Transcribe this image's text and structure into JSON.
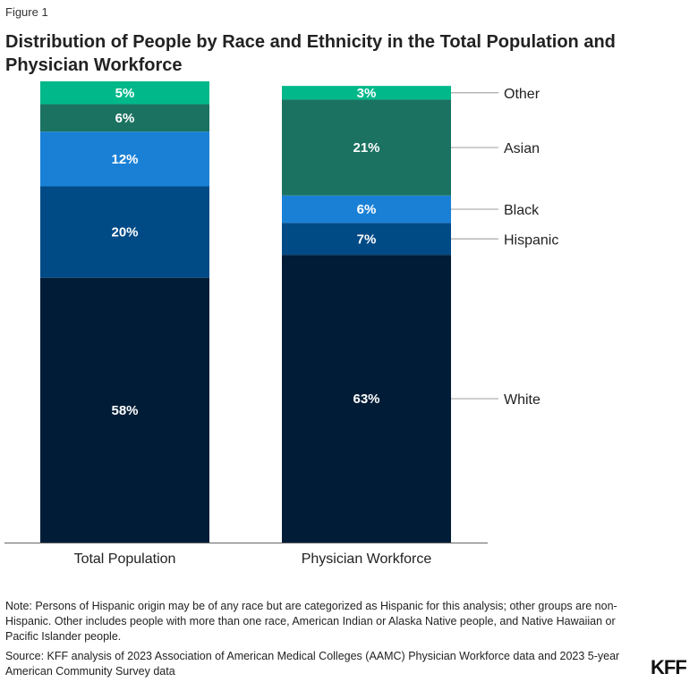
{
  "figure_label": "Figure 1",
  "title": "Distribution of People by Race and Ethnicity in the Total Population and Physician Workforce",
  "note": "Note: Persons of Hispanic origin may be of any race but are categorized as Hispanic for this analysis; other groups are non-Hispanic. Other includes people with more than one race, American Indian or Alaska Native people, and Native Hawaiian or Pacific Islander people.",
  "source": "Source: KFF analysis of 2023 Association of American Medical Colleges (AAMC) Physician Workforce data and 2023 5-year American Community Survey data",
  "logo": "KFF",
  "chart_data": {
    "type": "bar",
    "stacked": true,
    "title": "Distribution of People by Race and Ethnicity in the Total Population and Physician Workforce",
    "categories": [
      "Total Population",
      "Physician Workforce"
    ],
    "series": [
      {
        "name": "White",
        "values": [
          58,
          63
        ],
        "color": "#001c36"
      },
      {
        "name": "Hispanic",
        "values": [
          20,
          7
        ],
        "color": "#004a86"
      },
      {
        "name": "Black",
        "values": [
          12,
          6
        ],
        "color": "#1a80d6"
      },
      {
        "name": "Asian",
        "values": [
          6,
          21
        ],
        "color": "#1b7261"
      },
      {
        "name": "Other",
        "values": [
          5,
          3
        ],
        "color": "#00b88a"
      }
    ],
    "value_suffix": "%",
    "legend": "right, inline labels",
    "ylim": [
      0,
      100
    ]
  }
}
